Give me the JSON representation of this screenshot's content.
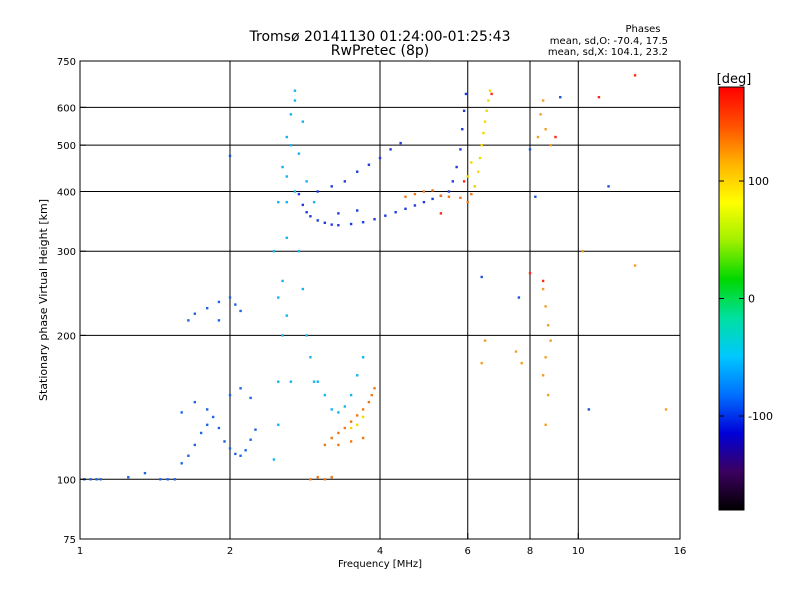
{
  "chart_data": {
    "type": "scatter",
    "title": "Tromsø 20141130 01:24:00-01:25:43",
    "subtitle": "RwPretec (8p)",
    "xlabel": "Frequency [MHz]",
    "ylabel": "Stationary phase Virtual Height [km]",
    "x_scale": "log2",
    "y_scale": "log",
    "xlim": [
      1,
      16
    ],
    "ylim": [
      75,
      750
    ],
    "x_ticks": [
      1,
      2,
      4,
      6,
      8,
      10,
      16
    ],
    "y_ticks": [
      75,
      100,
      200,
      300,
      400,
      500,
      600,
      750
    ],
    "x_grid_lines": [
      2,
      4,
      6,
      8,
      10
    ],
    "y_grid_lines": [
      100,
      200,
      300,
      400,
      500,
      600
    ],
    "grid": true,
    "phases_box": {
      "title": "Phases",
      "line_o": "mean, sd,O: -70.4, 17.5",
      "line_x": "mean, sd,X: 104.1, 23.2"
    },
    "colorbar": {
      "label": "[deg]",
      "ticks": [
        100,
        0,
        -100
      ],
      "range": [
        -180,
        180
      ],
      "colors": [
        "#000000",
        "#3c0060",
        "#0000d8",
        "#0070ff",
        "#00c8ff",
        "#00e0a0",
        "#00d800",
        "#a0f000",
        "#ffff00",
        "#ffb400",
        "#ff5000",
        "#ff0000"
      ]
    },
    "series": [
      {
        "color": "#1e64e6",
        "points": [
          [
            1.02,
            100
          ],
          [
            1.05,
            100
          ],
          [
            1.08,
            100
          ],
          [
            1.1,
            100
          ],
          [
            1.25,
            101
          ],
          [
            1.35,
            103
          ],
          [
            1.45,
            100
          ],
          [
            1.5,
            100
          ],
          [
            1.55,
            100
          ]
        ]
      },
      {
        "color": "#1e64e6",
        "points": [
          [
            1.6,
            108
          ],
          [
            1.65,
            112
          ],
          [
            1.7,
            118
          ],
          [
            1.75,
            125
          ],
          [
            1.8,
            130
          ],
          [
            1.85,
            135
          ],
          [
            1.9,
            128
          ],
          [
            1.95,
            120
          ],
          [
            2.0,
            116
          ],
          [
            2.05,
            113
          ],
          [
            2.1,
            112
          ],
          [
            2.15,
            115
          ],
          [
            2.2,
            121
          ],
          [
            2.25,
            127
          ],
          [
            1.6,
            138
          ],
          [
            1.7,
            145
          ],
          [
            1.8,
            140
          ],
          [
            2.0,
            150
          ],
          [
            2.1,
            155
          ],
          [
            2.2,
            148
          ],
          [
            1.65,
            215
          ],
          [
            1.7,
            222
          ],
          [
            1.8,
            228
          ],
          [
            1.9,
            235
          ],
          [
            2.0,
            240
          ],
          [
            2.05,
            232
          ],
          [
            2.1,
            225
          ],
          [
            1.9,
            215
          ]
        ]
      },
      {
        "color": "#14b4f0",
        "points": [
          [
            2.45,
            110
          ],
          [
            2.5,
            130
          ],
          [
            2.5,
            160
          ],
          [
            2.55,
            200
          ],
          [
            2.55,
            260
          ],
          [
            2.6,
            320
          ],
          [
            2.6,
            380
          ],
          [
            2.6,
            430
          ],
          [
            2.65,
            500
          ],
          [
            2.65,
            580
          ],
          [
            2.7,
            650
          ],
          [
            2.65,
            160
          ],
          [
            2.6,
            220
          ],
          [
            2.7,
            400
          ],
          [
            2.75,
            300
          ],
          [
            2.8,
            250
          ],
          [
            2.85,
            200
          ],
          [
            2.9,
            180
          ],
          [
            2.95,
            160
          ],
          [
            2.5,
            240
          ],
          [
            2.45,
            300
          ],
          [
            2.5,
            380
          ],
          [
            2.55,
            450
          ],
          [
            2.6,
            520
          ],
          [
            2.7,
            620
          ],
          [
            2.75,
            480
          ],
          [
            2.8,
            560
          ],
          [
            2.85,
            420
          ],
          [
            2.95,
            380
          ],
          [
            3.0,
            160
          ],
          [
            3.1,
            150
          ],
          [
            3.2,
            140
          ],
          [
            3.3,
            138
          ],
          [
            3.4,
            142
          ],
          [
            3.5,
            150
          ],
          [
            3.6,
            165
          ],
          [
            3.7,
            180
          ]
        ]
      },
      {
        "color": "#1e3cdc",
        "points": [
          [
            2.75,
            395
          ],
          [
            2.8,
            375
          ],
          [
            2.85,
            362
          ],
          [
            2.9,
            355
          ],
          [
            3.0,
            348
          ],
          [
            3.1,
            344
          ],
          [
            3.2,
            341
          ],
          [
            3.3,
            340
          ],
          [
            3.5,
            342
          ],
          [
            3.7,
            345
          ],
          [
            3.9,
            350
          ],
          [
            4.1,
            356
          ],
          [
            4.3,
            362
          ],
          [
            4.5,
            368
          ],
          [
            4.7,
            374
          ],
          [
            4.9,
            380
          ],
          [
            5.1,
            386
          ],
          [
            5.3,
            392
          ],
          [
            5.5,
            400
          ],
          [
            5.6,
            420
          ],
          [
            5.7,
            450
          ],
          [
            5.8,
            490
          ],
          [
            5.85,
            540
          ],
          [
            5.9,
            590
          ],
          [
            5.95,
            640
          ],
          [
            3.0,
            400
          ],
          [
            3.2,
            410
          ],
          [
            3.4,
            420
          ],
          [
            3.6,
            440
          ],
          [
            3.8,
            455
          ],
          [
            4.0,
            470
          ],
          [
            4.2,
            490
          ],
          [
            4.4,
            505
          ],
          [
            3.3,
            360
          ],
          [
            3.6,
            365
          ]
        ]
      },
      {
        "color": "#f07814",
        "points": [
          [
            3.1,
            118
          ],
          [
            3.2,
            122
          ],
          [
            3.3,
            125
          ],
          [
            3.4,
            128
          ],
          [
            3.5,
            132
          ],
          [
            3.6,
            136
          ],
          [
            3.7,
            140
          ],
          [
            3.8,
            145
          ],
          [
            3.85,
            150
          ],
          [
            3.9,
            155
          ],
          [
            3.3,
            118
          ],
          [
            3.5,
            120
          ],
          [
            3.7,
            122
          ],
          [
            3.0,
            101
          ],
          [
            3.1,
            100
          ],
          [
            3.2,
            101
          ],
          [
            2.9,
            100
          ],
          [
            4.5,
            390
          ],
          [
            4.7,
            395
          ],
          [
            4.9,
            400
          ],
          [
            5.1,
            402
          ],
          [
            5.3,
            392
          ],
          [
            5.5,
            390
          ],
          [
            5.8,
            388
          ],
          [
            6.0,
            380
          ],
          [
            6.1,
            395
          ],
          [
            6.2,
            410
          ]
        ]
      },
      {
        "color": "#f0dc00",
        "points": [
          [
            6.2,
            410
          ],
          [
            6.3,
            440
          ],
          [
            6.35,
            470
          ],
          [
            6.4,
            500
          ],
          [
            6.45,
            530
          ],
          [
            6.5,
            560
          ],
          [
            6.55,
            590
          ],
          [
            6.6,
            620
          ],
          [
            6.65,
            650
          ],
          [
            3.5,
            128
          ],
          [
            3.6,
            130
          ],
          [
            3.7,
            135
          ],
          [
            6.0,
            430
          ],
          [
            6.1,
            460
          ]
        ]
      },
      {
        "color": "#ff2814",
        "points": [
          [
            6.7,
            640
          ],
          [
            5.3,
            360
          ],
          [
            5.9,
            420
          ],
          [
            8.0,
            270
          ],
          [
            8.5,
            260
          ],
          [
            11.0,
            630
          ],
          [
            9.0,
            520
          ],
          [
            13.0,
            700
          ]
        ]
      },
      {
        "color": "#f0a028",
        "points": [
          [
            8.3,
            520
          ],
          [
            8.4,
            580
          ],
          [
            8.5,
            620
          ],
          [
            8.6,
            540
          ],
          [
            8.8,
            500
          ],
          [
            8.5,
            250
          ],
          [
            8.6,
            230
          ],
          [
            8.7,
            210
          ],
          [
            8.8,
            195
          ],
          [
            8.6,
            180
          ],
          [
            8.5,
            165
          ],
          [
            8.7,
            150
          ],
          [
            8.6,
            130
          ],
          [
            6.5,
            195
          ],
          [
            7.5,
            185
          ],
          [
            10.2,
            300
          ],
          [
            13.0,
            280
          ],
          [
            15.0,
            140
          ],
          [
            6.4,
            175
          ],
          [
            7.7,
            175
          ]
        ]
      },
      {
        "color": "#1e50d2",
        "points": [
          [
            6.4,
            265
          ],
          [
            7.6,
            240
          ],
          [
            8.0,
            490
          ],
          [
            8.2,
            390
          ],
          [
            11.5,
            410
          ],
          [
            9.2,
            630
          ],
          [
            10.5,
            140
          ],
          [
            2.0,
            475
          ]
        ]
      }
    ]
  }
}
